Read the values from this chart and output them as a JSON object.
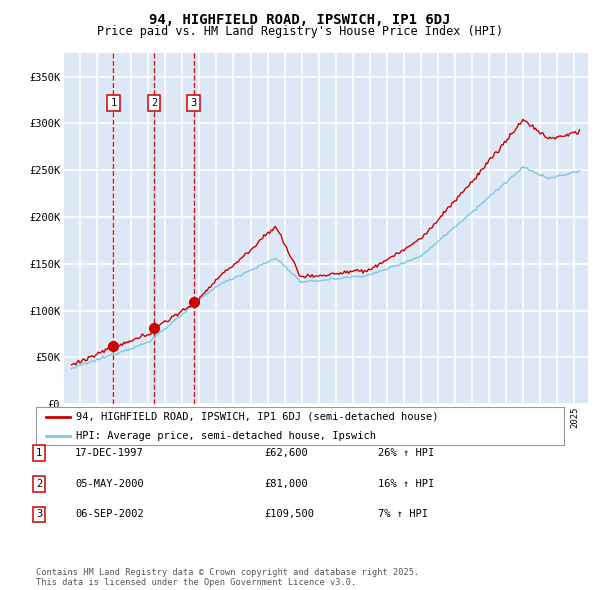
{
  "title": "94, HIGHFIELD ROAD, IPSWICH, IP1 6DJ",
  "subtitle": "Price paid vs. HM Land Registry's House Price Index (HPI)",
  "hpi_color": "#7ec8e3",
  "price_color": "#cc0000",
  "background_color": "#dce8f5",
  "grid_color": "#ffffff",
  "yticks": [
    0,
    50000,
    100000,
    150000,
    200000,
    250000,
    300000,
    350000
  ],
  "ytick_labels": [
    "£0",
    "£50K",
    "£100K",
    "£150K",
    "£200K",
    "£250K",
    "£300K",
    "£350K"
  ],
  "sale_year_floats": [
    1997.96,
    2000.34,
    2002.67
  ],
  "sale_prices": [
    62600,
    81000,
    109500
  ],
  "sale_labels": [
    "1",
    "2",
    "3"
  ],
  "legend_entry1": "94, HIGHFIELD ROAD, IPSWICH, IP1 6DJ (semi-detached house)",
  "legend_entry2": "HPI: Average price, semi-detached house, Ipswich",
  "table_rows": [
    [
      "1",
      "17-DEC-1997",
      "£62,600",
      "26% ↑ HPI"
    ],
    [
      "2",
      "05-MAY-2000",
      "£81,000",
      "16% ↑ HPI"
    ],
    [
      "3",
      "06-SEP-2002",
      "£109,500",
      "7% ↑ HPI"
    ]
  ],
  "footnote": "Contains HM Land Registry data © Crown copyright and database right 2025.\nThis data is licensed under the Open Government Licence v3.0."
}
